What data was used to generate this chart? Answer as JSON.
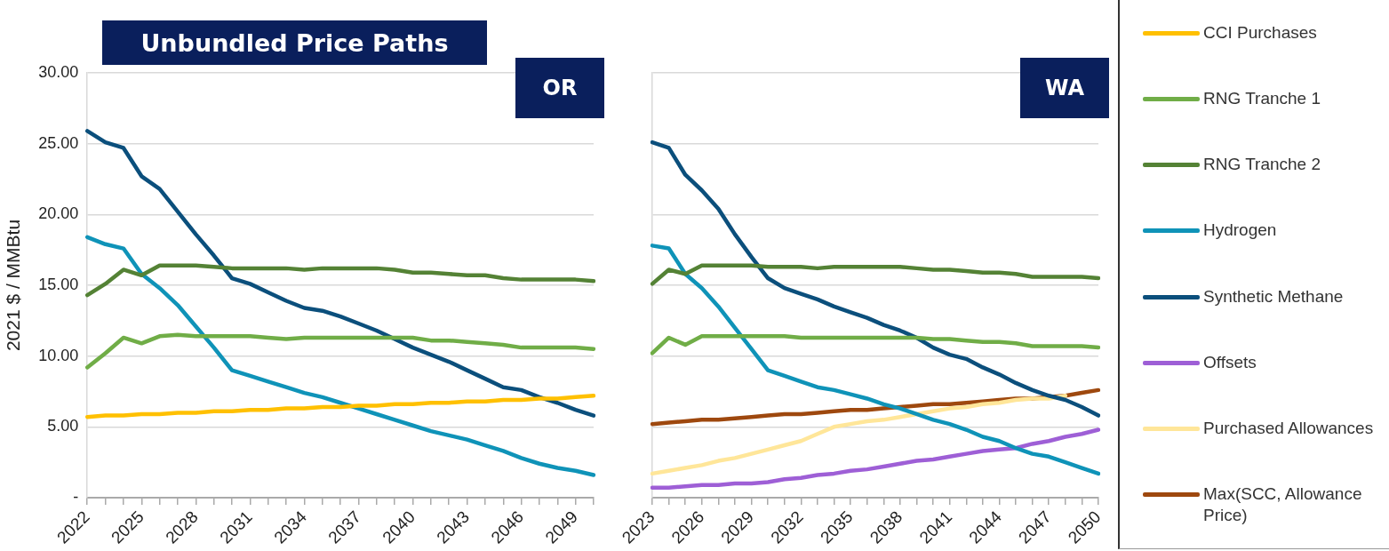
{
  "chart_data": [
    {
      "type": "line",
      "title": "Unbundled Price Paths",
      "subtitle": "OR",
      "ylabel": "2021 $ / MMBtu",
      "categories": [
        "2022",
        null,
        null,
        "2025",
        null,
        null,
        "2028",
        null,
        null,
        "2031",
        null,
        null,
        "2034",
        null,
        null,
        "2037",
        null,
        null,
        "2040",
        null,
        null,
        "2043",
        null,
        null,
        "2046",
        null,
        null,
        "2049",
        null
      ],
      "series": [
        {
          "name": "CCI Purchases",
          "color": "#ffc000",
          "values": [
            5.7,
            5.8,
            5.8,
            5.9,
            5.9,
            6.0,
            6.0,
            6.1,
            6.1,
            6.2,
            6.2,
            6.3,
            6.3,
            6.4,
            6.4,
            6.5,
            6.5,
            6.6,
            6.6,
            6.7,
            6.7,
            6.8,
            6.8,
            6.9,
            6.9,
            7.0,
            7.0,
            7.1,
            7.2
          ]
        },
        {
          "name": "RNG Tranche 1",
          "color": "#70ad47",
          "values": [
            9.2,
            10.2,
            11.3,
            10.9,
            11.4,
            11.5,
            11.4,
            11.4,
            11.4,
            11.4,
            11.3,
            11.2,
            11.3,
            11.3,
            11.3,
            11.3,
            11.3,
            11.3,
            11.3,
            11.1,
            11.1,
            11.0,
            10.9,
            10.8,
            10.6,
            10.6,
            10.6,
            10.6,
            10.5
          ]
        },
        {
          "name": "RNG Tranche 2",
          "color": "#548235",
          "values": [
            14.3,
            15.1,
            16.1,
            15.7,
            16.4,
            16.4,
            16.4,
            16.3,
            16.2,
            16.2,
            16.2,
            16.2,
            16.1,
            16.2,
            16.2,
            16.2,
            16.2,
            16.1,
            15.9,
            15.9,
            15.8,
            15.7,
            15.7,
            15.5,
            15.4,
            15.4,
            15.4,
            15.4,
            15.3
          ]
        },
        {
          "name": "Hydrogen",
          "color": "#0f93b8",
          "values": [
            18.4,
            17.9,
            17.6,
            15.8,
            14.8,
            13.6,
            12.1,
            10.6,
            9.0,
            8.6,
            8.2,
            7.8,
            7.4,
            7.1,
            6.7,
            6.3,
            5.9,
            5.5,
            5.1,
            4.7,
            4.4,
            4.1,
            3.7,
            3.3,
            2.8,
            2.4,
            2.1,
            1.9,
            1.6
          ]
        },
        {
          "name": "Synthetic Methane",
          "color": "#0b4f7c",
          "values": [
            25.9,
            25.1,
            24.7,
            22.7,
            21.8,
            20.2,
            18.6,
            17.1,
            15.5,
            15.1,
            14.5,
            13.9,
            13.4,
            13.2,
            12.8,
            12.3,
            11.8,
            11.2,
            10.6,
            10.1,
            9.6,
            9.0,
            8.4,
            7.8,
            7.6,
            7.1,
            6.7,
            6.2,
            5.8
          ]
        }
      ],
      "ylim": [
        0,
        30
      ],
      "yticks": [
        {
          "value": 0,
          "label": "-"
        },
        {
          "value": 5,
          "label": "5.00"
        },
        {
          "value": 10,
          "label": "10.00"
        },
        {
          "value": 15,
          "label": "15.00"
        },
        {
          "value": 20,
          "label": "20.00"
        },
        {
          "value": 25,
          "label": "25.00"
        },
        {
          "value": 30,
          "label": "30.00"
        }
      ],
      "grid": "y",
      "legend": "right",
      "marker": "none",
      "line_style": "solid"
    },
    {
      "type": "line",
      "title": "WA",
      "categories": [
        "2023",
        null,
        null,
        "2026",
        null,
        null,
        "2029",
        null,
        null,
        "2032",
        null,
        null,
        "2035",
        null,
        null,
        "2038",
        null,
        null,
        "2041",
        null,
        null,
        "2044",
        null,
        null,
        "2047",
        null,
        null,
        "2050"
      ],
      "series": [
        {
          "name": "RNG Tranche 1",
          "color": "#70ad47",
          "values": [
            10.2,
            11.3,
            10.8,
            11.4,
            11.4,
            11.4,
            11.4,
            11.4,
            11.4,
            11.3,
            11.3,
            11.3,
            11.3,
            11.3,
            11.3,
            11.3,
            11.3,
            11.2,
            11.2,
            11.1,
            11.0,
            11.0,
            10.9,
            10.7,
            10.7,
            10.7,
            10.7,
            10.6
          ]
        },
        {
          "name": "RNG Tranche 2",
          "color": "#548235",
          "values": [
            15.1,
            16.1,
            15.8,
            16.4,
            16.4,
            16.4,
            16.4,
            16.3,
            16.3,
            16.3,
            16.2,
            16.3,
            16.3,
            16.3,
            16.3,
            16.3,
            16.2,
            16.1,
            16.1,
            16.0,
            15.9,
            15.9,
            15.8,
            15.6,
            15.6,
            15.6,
            15.6,
            15.5
          ]
        },
        {
          "name": "Hydrogen",
          "color": "#0f93b8",
          "values": [
            17.8,
            17.6,
            15.8,
            14.8,
            13.5,
            12.0,
            10.5,
            9.0,
            8.6,
            8.2,
            7.8,
            7.6,
            7.3,
            7.0,
            6.6,
            6.3,
            5.9,
            5.5,
            5.2,
            4.8,
            4.3,
            4.0,
            3.5,
            3.1,
            2.9,
            2.5,
            2.1,
            1.7
          ]
        },
        {
          "name": "Synthetic Methane",
          "color": "#0b4f7c",
          "values": [
            25.1,
            24.7,
            22.8,
            21.7,
            20.4,
            18.6,
            17.0,
            15.5,
            14.8,
            14.4,
            14.0,
            13.5,
            13.1,
            12.7,
            12.2,
            11.8,
            11.3,
            10.6,
            10.1,
            9.8,
            9.2,
            8.7,
            8.1,
            7.6,
            7.2,
            6.9,
            6.4,
            5.8
          ]
        },
        {
          "name": "Offsets",
          "color": "#9e5fd6",
          "values": [
            0.7,
            0.7,
            0.8,
            0.9,
            0.9,
            1.0,
            1.0,
            1.1,
            1.3,
            1.4,
            1.6,
            1.7,
            1.9,
            2.0,
            2.2,
            2.4,
            2.6,
            2.7,
            2.9,
            3.1,
            3.3,
            3.4,
            3.5,
            3.8,
            4.0,
            4.3,
            4.5,
            4.8
          ]
        },
        {
          "name": "Purchased Allowances",
          "color": "#ffe699",
          "values": [
            1.7,
            1.9,
            2.1,
            2.3,
            2.6,
            2.8,
            3.1,
            3.4,
            3.7,
            4.0,
            4.5,
            5.0,
            5.2,
            5.4,
            5.5,
            5.7,
            5.9,
            6.1,
            6.3,
            6.4,
            6.6,
            6.7,
            6.9,
            7.0,
            7.0,
            7.2,
            null,
            null
          ]
        },
        {
          "name": "Max(SCC, Allowance Price)",
          "color": "#9e480e",
          "values": [
            5.2,
            5.3,
            5.4,
            5.5,
            5.5,
            5.6,
            5.7,
            5.8,
            5.9,
            5.9,
            6.0,
            6.1,
            6.2,
            6.2,
            6.3,
            6.4,
            6.5,
            6.6,
            6.6,
            6.7,
            6.8,
            6.9,
            7.0,
            7.0,
            7.1,
            7.2,
            7.4,
            7.6
          ]
        }
      ],
      "ylim": [
        0,
        30
      ],
      "yticks": [
        0,
        5,
        10,
        15,
        20,
        25,
        30
      ],
      "tick_labels": "x",
      "grid": "y",
      "legend": "right",
      "marker": "none",
      "line_style": "solid"
    }
  ]
}
